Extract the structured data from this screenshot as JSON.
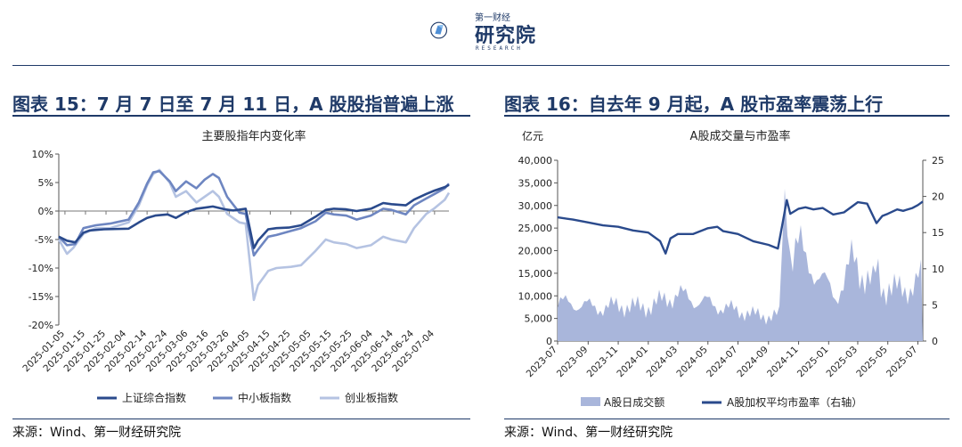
{
  "header": {
    "logo_top": "第一财经",
    "logo_main": "研究院",
    "logo_sub": "RESEARCH",
    "logo_color": "#1f3a68"
  },
  "left_panel": {
    "figure_title": "图表 15：7 月 7 日至 7 月 11 日，A 股股指普遍上涨",
    "source": "来源：Wind、第一财经研究院"
  },
  "right_panel": {
    "figure_title": "图表 16：自去年 9 月起，A 股市盈率震荡上行",
    "source": "来源：Wind、第一财经研究院"
  },
  "chart_data": [
    {
      "type": "line",
      "title": "主要股指年内变化率",
      "ylim": [
        -20,
        10
      ],
      "yticks": [
        "10%",
        "5%",
        "0%",
        "-5%",
        "-10%",
        "-15%",
        "-20%"
      ],
      "ytick_values": [
        10,
        5,
        0,
        -5,
        -10,
        -15,
        -20
      ],
      "categories": [
        "2025-01-05",
        "2025-01-15",
        "2025-01-25",
        "2025-02-04",
        "2025-02-14",
        "2025-02-24",
        "2025-03-06",
        "2025-03-16",
        "2025-03-26",
        "2025-04-05",
        "2025-04-15",
        "2025-04-25",
        "2025-05-05",
        "2025-05-15",
        "2025-05-25",
        "2025-06-04",
        "2025-06-14",
        "2025-06-24",
        "2025-07-04"
      ],
      "x_start": "2025-01-02",
      "x_end": "2025-07-11",
      "legend_position": "bottom",
      "series": [
        {
          "name": "上证综合指数",
          "color": "#2a4a8c",
          "width": 2.6,
          "points": [
            [
              "2025-01-02",
              -4.5
            ],
            [
              "2025-01-06",
              -5.2
            ],
            [
              "2025-01-10",
              -5.5
            ],
            [
              "2025-01-14",
              -3.8
            ],
            [
              "2025-01-17",
              -3.4
            ],
            [
              "2025-01-24",
              -3.2
            ],
            [
              "2025-02-05",
              -3.1
            ],
            [
              "2025-02-10",
              -2.0
            ],
            [
              "2025-02-14",
              -1.2
            ],
            [
              "2025-02-18",
              -0.8
            ],
            [
              "2025-02-24",
              -0.6
            ],
            [
              "2025-02-28",
              -1.2
            ],
            [
              "2025-03-05",
              -0.2
            ],
            [
              "2025-03-10",
              0.4
            ],
            [
              "2025-03-14",
              0.6
            ],
            [
              "2025-03-18",
              0.8
            ],
            [
              "2025-03-24",
              0.3
            ],
            [
              "2025-03-28",
              0.1
            ],
            [
              "2025-04-03",
              0.4
            ],
            [
              "2025-04-07",
              -6.5
            ],
            [
              "2025-04-09",
              -5.2
            ],
            [
              "2025-04-14",
              -3.2
            ],
            [
              "2025-04-18",
              -3.0
            ],
            [
              "2025-04-24",
              -2.9
            ],
            [
              "2025-04-30",
              -2.5
            ],
            [
              "2025-05-07",
              -1.0
            ],
            [
              "2025-05-12",
              0.2
            ],
            [
              "2025-05-16",
              0.4
            ],
            [
              "2025-05-22",
              0.3
            ],
            [
              "2025-05-27",
              0.0
            ],
            [
              "2025-06-03",
              0.4
            ],
            [
              "2025-06-09",
              1.4
            ],
            [
              "2025-06-13",
              1.2
            ],
            [
              "2025-06-20",
              1.0
            ],
            [
              "2025-06-24",
              2.0
            ],
            [
              "2025-06-30",
              3.0
            ],
            [
              "2025-07-04",
              3.6
            ],
            [
              "2025-07-09",
              4.2
            ],
            [
              "2025-07-11",
              4.6
            ]
          ]
        },
        {
          "name": "中小板指数",
          "color": "#6e86c1",
          "width": 2.6,
          "points": [
            [
              "2025-01-02",
              -4.5
            ],
            [
              "2025-01-06",
              -6.0
            ],
            [
              "2025-01-10",
              -5.8
            ],
            [
              "2025-01-14",
              -3.0
            ],
            [
              "2025-01-20",
              -2.5
            ],
            [
              "2025-01-27",
              -2.2
            ],
            [
              "2025-02-05",
              -1.5
            ],
            [
              "2025-02-10",
              1.5
            ],
            [
              "2025-02-14",
              4.8
            ],
            [
              "2025-02-17",
              6.8
            ],
            [
              "2025-02-20",
              7.0
            ],
            [
              "2025-02-25",
              5.2
            ],
            [
              "2025-02-28",
              3.5
            ],
            [
              "2025-03-05",
              5.2
            ],
            [
              "2025-03-10",
              4.0
            ],
            [
              "2025-03-14",
              5.5
            ],
            [
              "2025-03-18",
              6.5
            ],
            [
              "2025-03-21",
              5.8
            ],
            [
              "2025-03-25",
              2.5
            ],
            [
              "2025-03-31",
              -0.3
            ],
            [
              "2025-04-03",
              -0.5
            ],
            [
              "2025-04-07",
              -7.8
            ],
            [
              "2025-04-09",
              -6.8
            ],
            [
              "2025-04-14",
              -4.5
            ],
            [
              "2025-04-18",
              -4.2
            ],
            [
              "2025-04-25",
              -3.5
            ],
            [
              "2025-04-30",
              -3.0
            ],
            [
              "2025-05-07",
              -1.8
            ],
            [
              "2025-05-12",
              -0.3
            ],
            [
              "2025-05-16",
              -0.6
            ],
            [
              "2025-05-22",
              -0.8
            ],
            [
              "2025-05-27",
              -1.5
            ],
            [
              "2025-06-03",
              -0.8
            ],
            [
              "2025-06-09",
              0.4
            ],
            [
              "2025-06-13",
              0.2
            ],
            [
              "2025-06-20",
              -0.6
            ],
            [
              "2025-06-24",
              1.0
            ],
            [
              "2025-06-30",
              2.2
            ],
            [
              "2025-07-04",
              3.0
            ],
            [
              "2025-07-09",
              4.0
            ],
            [
              "2025-07-11",
              4.8
            ]
          ]
        },
        {
          "name": "创业板指数",
          "color": "#b5c3e2",
          "width": 2.6,
          "points": [
            [
              "2025-01-02",
              -5.0
            ],
            [
              "2025-01-06",
              -7.5
            ],
            [
              "2025-01-09",
              -6.5
            ],
            [
              "2025-01-14",
              -4.0
            ],
            [
              "2025-01-20",
              -3.0
            ],
            [
              "2025-01-27",
              -3.0
            ],
            [
              "2025-02-05",
              -2.0
            ],
            [
              "2025-02-10",
              1.0
            ],
            [
              "2025-02-14",
              4.5
            ],
            [
              "2025-02-17",
              6.5
            ],
            [
              "2025-02-20",
              7.2
            ],
            [
              "2025-02-25",
              5.0
            ],
            [
              "2025-02-28",
              2.5
            ],
            [
              "2025-03-05",
              3.5
            ],
            [
              "2025-03-10",
              1.5
            ],
            [
              "2025-03-14",
              2.5
            ],
            [
              "2025-03-18",
              3.5
            ],
            [
              "2025-03-21",
              2.5
            ],
            [
              "2025-03-25",
              -0.5
            ],
            [
              "2025-03-31",
              -2.0
            ],
            [
              "2025-04-03",
              -2.2
            ],
            [
              "2025-04-07",
              -15.6
            ],
            [
              "2025-04-09",
              -13.0
            ],
            [
              "2025-04-14",
              -10.5
            ],
            [
              "2025-04-18",
              -10.0
            ],
            [
              "2025-04-25",
              -9.8
            ],
            [
              "2025-04-30",
              -9.5
            ],
            [
              "2025-05-07",
              -7.0
            ],
            [
              "2025-05-12",
              -5.0
            ],
            [
              "2025-05-16",
              -5.5
            ],
            [
              "2025-05-22",
              -5.8
            ],
            [
              "2025-05-27",
              -6.5
            ],
            [
              "2025-06-03",
              -6.0
            ],
            [
              "2025-06-09",
              -4.5
            ],
            [
              "2025-06-13",
              -5.0
            ],
            [
              "2025-06-20",
              -5.5
            ],
            [
              "2025-06-24",
              -3.0
            ],
            [
              "2025-06-30",
              -0.5
            ],
            [
              "2025-07-04",
              0.5
            ],
            [
              "2025-07-09",
              2.0
            ],
            [
              "2025-07-11",
              3.2
            ]
          ]
        }
      ]
    },
    {
      "type": "area",
      "title": "A股成交量与市盈率",
      "ylabel": "亿元",
      "ylim": [
        0,
        40000
      ],
      "yticks": [
        "40,000",
        "35,000",
        "30,000",
        "25,000",
        "20,000",
        "15,000",
        "10,000",
        "5,000",
        "0"
      ],
      "ytick_values": [
        40000,
        35000,
        30000,
        25000,
        20000,
        15000,
        10000,
        5000,
        0
      ],
      "y2lim": [
        0,
        25
      ],
      "y2ticks": [
        "25",
        "20",
        "15",
        "10",
        "5",
        "0"
      ],
      "y2tick_values": [
        25,
        20,
        15,
        10,
        5,
        0
      ],
      "categories": [
        "2023-07",
        "2023-09",
        "2023-11",
        "2024-01",
        "2024-03",
        "2024-05",
        "2024-07",
        "2024-09",
        "2024-11",
        "2025-01",
        "2025-03",
        "2025-05",
        "2025-07"
      ],
      "x_start": "2023-07-01",
      "x_end": "2025-07-11",
      "legend_position": "bottom",
      "series": [
        {
          "name": "A股日成交额",
          "kind": "area",
          "color": "#a9b6db",
          "axis": "left",
          "points": [
            [
              "2023-07-01",
              8500
            ],
            [
              "2023-08-01",
              8200
            ],
            [
              "2023-09-01",
              7800
            ],
            [
              "2023-10-01",
              7200
            ],
            [
              "2023-11-01",
              8000
            ],
            [
              "2023-12-01",
              7500
            ],
            [
              "2024-01-01",
              7600
            ],
            [
              "2024-02-01",
              9000
            ],
            [
              "2024-03-01",
              10500
            ],
            [
              "2024-04-01",
              9000
            ],
            [
              "2024-05-01",
              8500
            ],
            [
              "2024-06-01",
              7300
            ],
            [
              "2024-07-01",
              6800
            ],
            [
              "2024-08-01",
              5800
            ],
            [
              "2024-09-01",
              5500
            ],
            [
              "2024-09-23",
              5800
            ],
            [
              "2024-09-30",
              26000
            ],
            [
              "2024-10-08",
              34500
            ],
            [
              "2024-10-15",
              20000
            ],
            [
              "2024-11-01",
              22000
            ],
            [
              "2024-11-15",
              17000
            ],
            [
              "2024-12-01",
              16000
            ],
            [
              "2024-12-15",
              14000
            ],
            [
              "2025-01-01",
              12000
            ],
            [
              "2025-01-15",
              10000
            ],
            [
              "2025-02-01",
              12500
            ],
            [
              "2025-02-20",
              19000
            ],
            [
              "2025-03-01",
              17000
            ],
            [
              "2025-03-15",
              14000
            ],
            [
              "2025-04-01",
              12500
            ],
            [
              "2025-04-08",
              16500
            ],
            [
              "2025-04-20",
              11500
            ],
            [
              "2025-05-01",
              12000
            ],
            [
              "2025-05-15",
              11500
            ],
            [
              "2025-06-01",
              11000
            ],
            [
              "2025-06-15",
              12000
            ],
            [
              "2025-07-01",
              13500
            ],
            [
              "2025-07-11",
              14500
            ]
          ]
        },
        {
          "name": "A股加权平均市盈率（右轴）",
          "kind": "line",
          "color": "#2a4a8c",
          "axis": "right",
          "points": [
            [
              "2023-07-01",
              17.1
            ],
            [
              "2023-08-01",
              16.8
            ],
            [
              "2023-09-01",
              16.4
            ],
            [
              "2023-10-01",
              16.0
            ],
            [
              "2023-11-01",
              15.8
            ],
            [
              "2023-12-01",
              15.3
            ],
            [
              "2024-01-01",
              15.0
            ],
            [
              "2024-01-25",
              13.8
            ],
            [
              "2024-02-05",
              12.1
            ],
            [
              "2024-02-15",
              14.2
            ],
            [
              "2024-03-01",
              14.8
            ],
            [
              "2024-04-01",
              14.8
            ],
            [
              "2024-05-01",
              15.6
            ],
            [
              "2024-05-20",
              15.8
            ],
            [
              "2024-06-01",
              15.2
            ],
            [
              "2024-07-01",
              14.8
            ],
            [
              "2024-08-01",
              13.8
            ],
            [
              "2024-09-01",
              13.3
            ],
            [
              "2024-09-20",
              12.8
            ],
            [
              "2024-09-30",
              16.5
            ],
            [
              "2024-10-08",
              19.5
            ],
            [
              "2024-10-15",
              17.6
            ],
            [
              "2024-11-01",
              18.3
            ],
            [
              "2024-11-15",
              18.5
            ],
            [
              "2024-12-01",
              18.2
            ],
            [
              "2024-12-20",
              18.4
            ],
            [
              "2025-01-10",
              17.5
            ],
            [
              "2025-02-01",
              17.8
            ],
            [
              "2025-03-01",
              19.2
            ],
            [
              "2025-03-20",
              19.0
            ],
            [
              "2025-04-08",
              16.3
            ],
            [
              "2025-04-20",
              17.3
            ],
            [
              "2025-05-01",
              17.6
            ],
            [
              "2025-05-20",
              18.2
            ],
            [
              "2025-06-01",
              18.0
            ],
            [
              "2025-06-20",
              18.4
            ],
            [
              "2025-07-01",
              18.8
            ],
            [
              "2025-07-11",
              19.3
            ]
          ]
        }
      ]
    }
  ]
}
